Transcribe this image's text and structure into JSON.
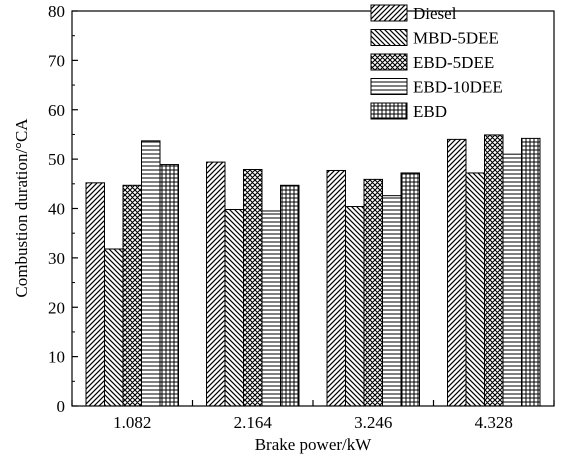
{
  "chart_data": {
    "type": "bar",
    "xlabel": "Brake power/kW",
    "ylabel": "Combustion duration/°CA",
    "categories": [
      "1.082",
      "2.164",
      "3.246",
      "4.328"
    ],
    "ylim": [
      0,
      80
    ],
    "yticks": [
      "0",
      "10",
      "20",
      "30",
      "40",
      "50",
      "60",
      "70",
      "80"
    ],
    "legend_position": "top-right",
    "grid": false,
    "series": [
      {
        "name": "Diesel",
        "pattern": "diagonal-up",
        "values": [
          45.2,
          49.4,
          47.7,
          54.0
        ]
      },
      {
        "name": "MBD-5DEE",
        "pattern": "diagonal-down",
        "values": [
          31.8,
          39.8,
          40.4,
          47.2
        ]
      },
      {
        "name": "EBD-5DEE",
        "pattern": "crosshatch",
        "values": [
          44.7,
          47.9,
          45.9,
          54.9
        ]
      },
      {
        "name": "EBD-10DEE",
        "pattern": "horizontal",
        "values": [
          53.7,
          39.5,
          42.6,
          51.0
        ]
      },
      {
        "name": "EBD",
        "pattern": "grid",
        "values": [
          48.9,
          44.7,
          47.2,
          54.2
        ]
      }
    ]
  }
}
